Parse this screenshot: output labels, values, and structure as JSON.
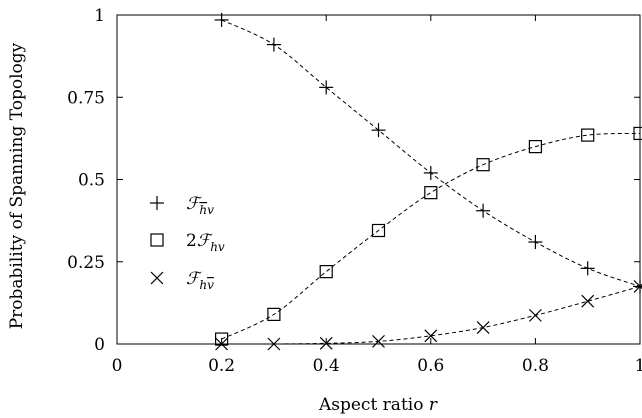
{
  "chart_data": {
    "type": "scatter",
    "xlabel": "Aspect ratio r",
    "ylabel": "Probability of Spanning Topology",
    "xlim": [
      0,
      1
    ],
    "ylim": [
      0,
      1
    ],
    "x_ticks": [
      0,
      0.2,
      0.4,
      0.6,
      0.8,
      1
    ],
    "x_tick_labels": [
      "0",
      "0.2",
      "0.4",
      "0.6",
      "0.8",
      "1"
    ],
    "y_ticks": [
      0,
      0.25,
      0.5,
      0.75,
      1
    ],
    "y_tick_labels": [
      "0",
      "0.25",
      "0.5",
      "0.75",
      "1"
    ],
    "grid": false,
    "legend_position": "left",
    "series": [
      {
        "name": "F_{h̄v}",
        "marker": "plus",
        "x": [
          0.2,
          0.3,
          0.4,
          0.5,
          0.6,
          0.7,
          0.8,
          0.9,
          1.0
        ],
        "values": [
          0.985,
          0.91,
          0.78,
          0.65,
          0.52,
          0.405,
          0.31,
          0.23,
          0.175
        ]
      },
      {
        "name": "2F_{hv}",
        "marker": "square",
        "x": [
          0.2,
          0.3,
          0.4,
          0.5,
          0.6,
          0.7,
          0.8,
          0.9,
          1.0
        ],
        "values": [
          0.015,
          0.09,
          0.22,
          0.345,
          0.46,
          0.545,
          0.6,
          0.635,
          0.64
        ]
      },
      {
        "name": "F_{hv̄}",
        "marker": "cross",
        "x": [
          0.2,
          0.3,
          0.4,
          0.5,
          0.6,
          0.7,
          0.8,
          0.9,
          1.0
        ],
        "values": [
          0.0,
          0.0,
          0.002,
          0.008,
          0.025,
          0.05,
          0.087,
          0.13,
          0.175
        ]
      }
    ]
  }
}
